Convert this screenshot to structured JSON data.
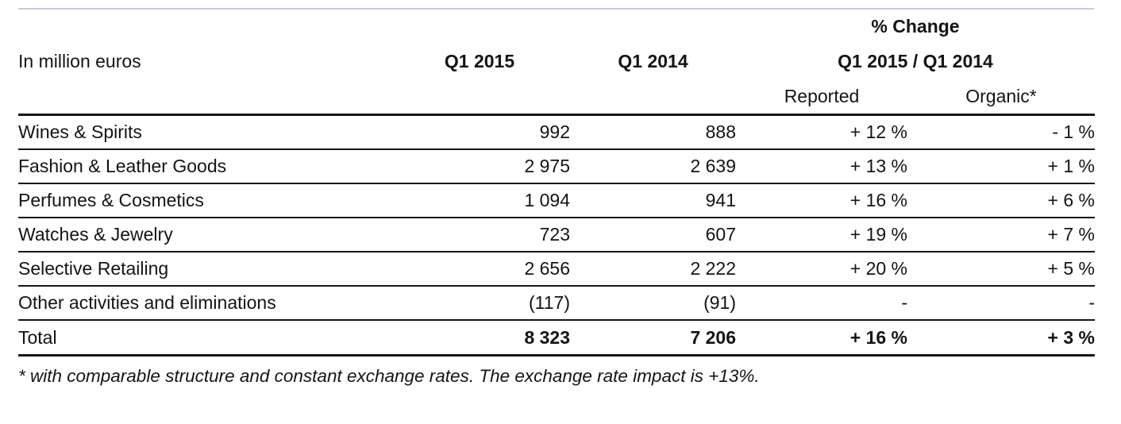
{
  "table": {
    "unit_label": "In million euros",
    "columns": {
      "q1_2015": "Q1 2015",
      "q1_2014": "Q1 2014"
    },
    "change_group": {
      "title": "% Change",
      "subtitle": "Q1 2015 / Q1 2014",
      "reported": "Reported",
      "organic": "Organic*"
    },
    "rows": [
      {
        "label": "Wines & Spirits",
        "q1_2015": "992",
        "q1_2014": "888",
        "reported": "+ 12 %",
        "organic": "- 1 %"
      },
      {
        "label": "Fashion & Leather Goods",
        "q1_2015": "2 975",
        "q1_2014": "2 639",
        "reported": "+ 13 %",
        "organic": "+ 1 %"
      },
      {
        "label": "Perfumes & Cosmetics",
        "q1_2015": "1 094",
        "q1_2014": "941",
        "reported": "+ 16 %",
        "organic": "+ 6 %"
      },
      {
        "label": "Watches & Jewelry",
        "q1_2015": "723",
        "q1_2014": "607",
        "reported": "+ 19 %",
        "organic": "+ 7 %"
      },
      {
        "label": "Selective Retailing",
        "q1_2015": "2 656",
        "q1_2014": "2 222",
        "reported": "+ 20 %",
        "organic": "+ 5 %"
      },
      {
        "label": "Other activities and eliminations",
        "q1_2015": "(117)",
        "q1_2014": "(91)",
        "reported": "-",
        "organic": "-"
      }
    ],
    "total": {
      "label": "Total",
      "q1_2015": "8 323",
      "q1_2014": "7 206",
      "reported": "+ 16 %",
      "organic": "+ 3 %"
    },
    "footnote": "* with comparable structure and constant exchange rates. The exchange rate impact is +13%."
  },
  "colors": {
    "text": "#141414",
    "rule_dark": "#161616",
    "rule_light": "#c6ccd8"
  }
}
